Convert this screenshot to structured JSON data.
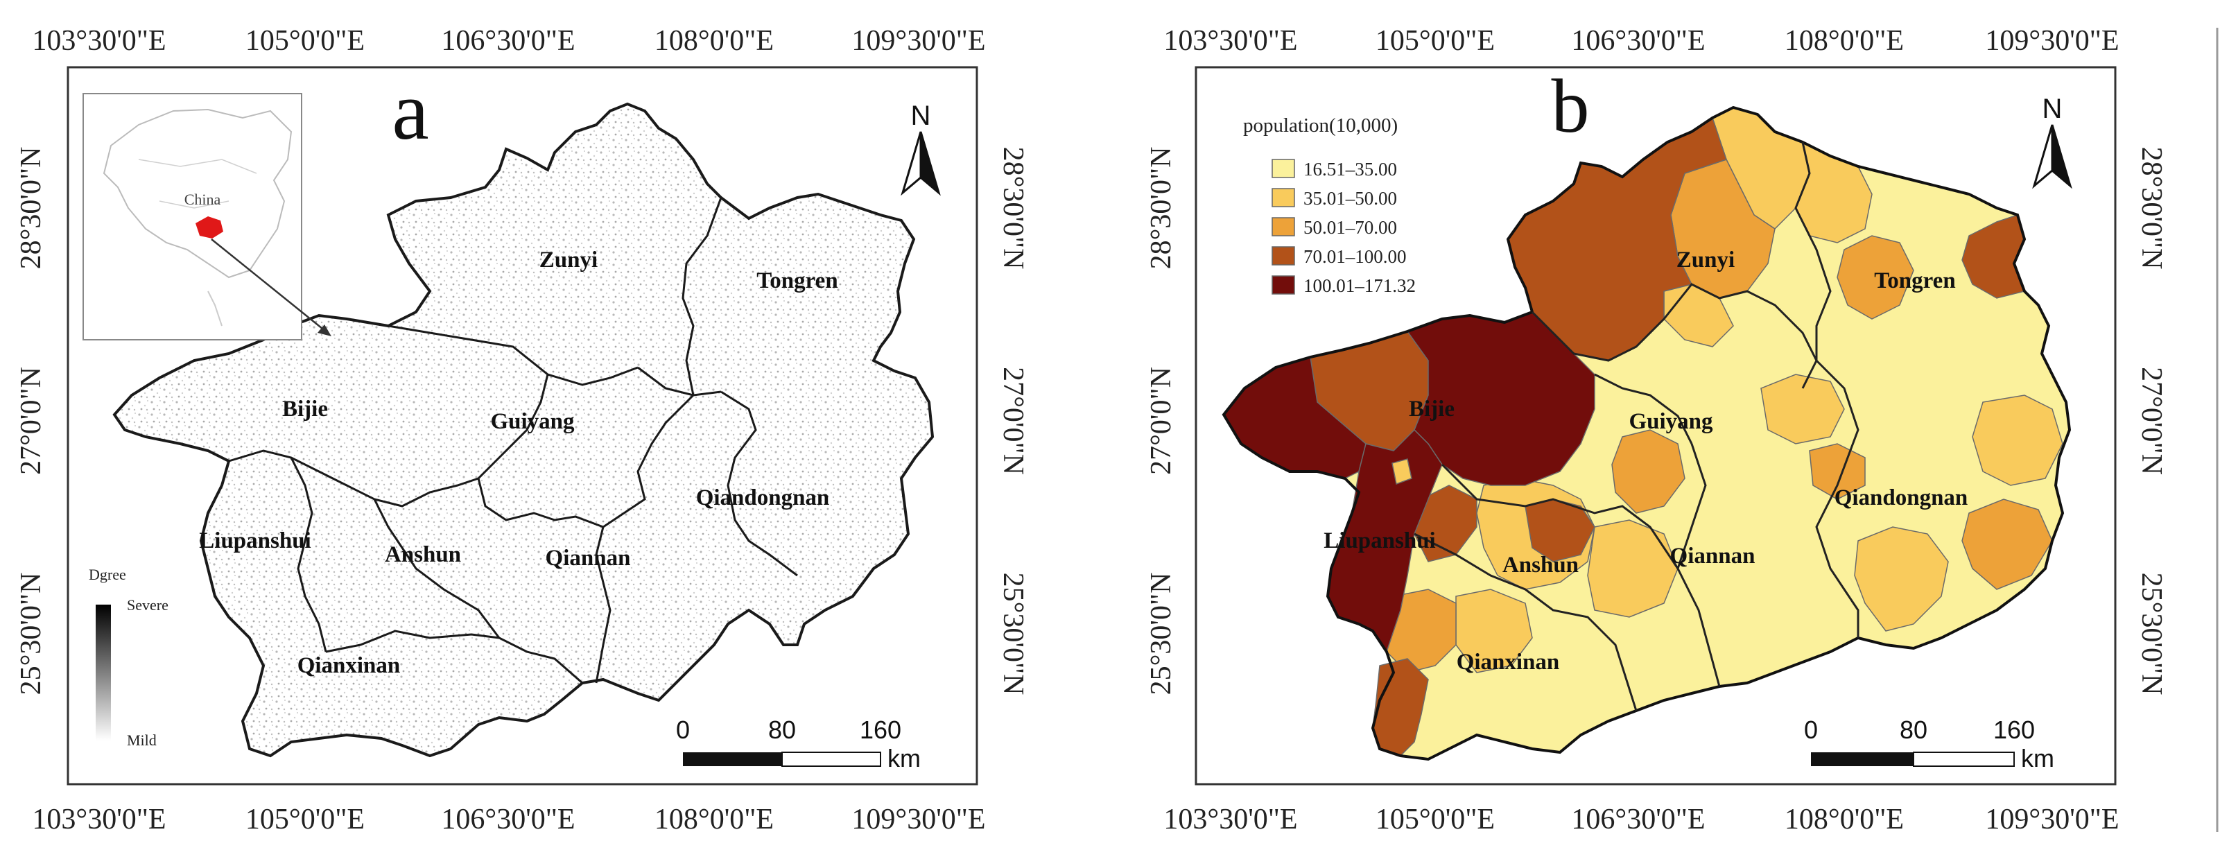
{
  "panel_a": {
    "label": "a",
    "x_ticks": [
      "103°30'0\"E",
      "105°0'0\"E",
      "106°30'0\"E",
      "108°0'0\"E",
      "109°30'0\"E"
    ],
    "y_ticks": [
      "28°30'0\"N",
      "27°0'0\"N",
      "25°30'0\"N"
    ],
    "north": "N",
    "inset_label": "China",
    "legend": {
      "title": "Dgree",
      "high": "Severe",
      "low": "Mild"
    },
    "scale": {
      "t0": "0",
      "t1": "80",
      "t2": "160",
      "unit": "km"
    },
    "regions": [
      "Zunyi",
      "Tongren",
      "Bijie",
      "Guiyang",
      "Qiandongnan",
      "Liupanshui",
      "Anshun",
      "Qiannan",
      "Qianxinan"
    ]
  },
  "panel_b": {
    "label": "b",
    "x_ticks": [
      "103°30'0\"E",
      "105°0'0\"E",
      "106°30'0\"E",
      "108°0'0\"E",
      "109°30'0\"E"
    ],
    "y_ticks": [
      "28°30'0\"N",
      "27°0'0\"N",
      "25°30'0\"N"
    ],
    "north": "N",
    "legend": {
      "title": "population(10,000)",
      "classes": [
        {
          "label": "16.51–35.00",
          "color": "#fbf19c"
        },
        {
          "label": "35.01–50.00",
          "color": "#f9cb5c"
        },
        {
          "label": "50.01–70.00",
          "color": "#eda239"
        },
        {
          "label": "70.01–100.00",
          "color": "#b25219"
        },
        {
          "label": "100.01–171.32",
          "color": "#720d0b"
        }
      ]
    },
    "scale": {
      "t0": "0",
      "t1": "80",
      "t2": "160",
      "unit": "km"
    },
    "regions": [
      "Zunyi",
      "Tongren",
      "Bijie",
      "Guiyang",
      "Qiandongnan",
      "Liupanshui",
      "Anshun",
      "Qiannan",
      "Qianxinan"
    ]
  }
}
